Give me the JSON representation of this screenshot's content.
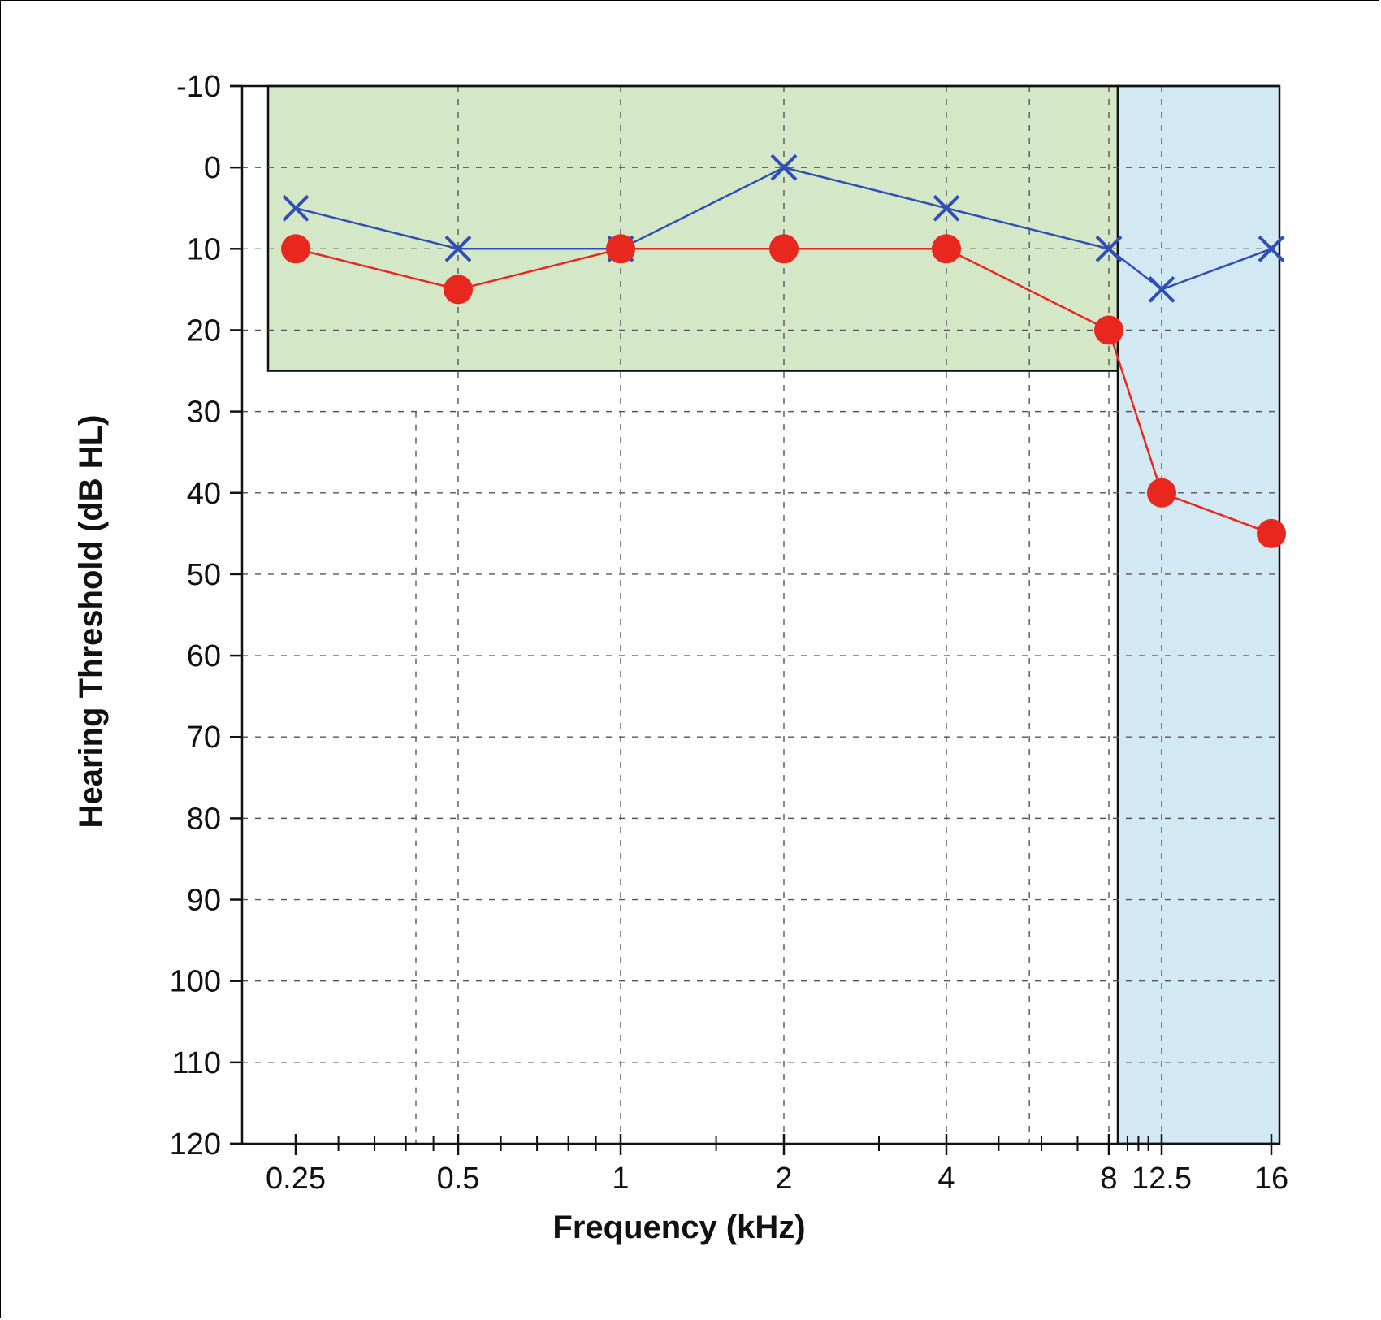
{
  "chart_data": {
    "type": "line",
    "title": "",
    "xlabel": "Frequency (kHz)",
    "ylabel": "Hearing Threshold (dB HL)",
    "x_scale": "log",
    "y_inverted": true,
    "ylim": [
      -10,
      120
    ],
    "y_ticks": [
      -10,
      0,
      10,
      20,
      30,
      40,
      50,
      60,
      70,
      80,
      90,
      100,
      110,
      120
    ],
    "x_ticks": [
      {
        "value": 0.25,
        "label": "0.25"
      },
      {
        "value": 0.5,
        "label": "0.5"
      },
      {
        "value": 1,
        "label": "1"
      },
      {
        "value": 2,
        "label": "2"
      },
      {
        "value": 4,
        "label": "4"
      },
      {
        "value": 8,
        "label": "8"
      },
      {
        "value": 12.5,
        "label": "12.5"
      },
      {
        "value": 16,
        "label": "16"
      }
    ],
    "grid": true,
    "shaded_regions": [
      {
        "x_from": 0.2,
        "x_to": 8.2,
        "y_from": -10,
        "y_to": 25,
        "color": "#d4e8c8"
      },
      {
        "x_from": 8.2,
        "x_to": 16.5,
        "y_from": -10,
        "y_to": 120,
        "color": "#d2e8f2"
      }
    ],
    "series": [
      {
        "marker": "x",
        "color": "#2f4fb5",
        "x": [
          0.25,
          0.5,
          1,
          2,
          4,
          8,
          12.5,
          16
        ],
        "values": [
          5,
          10,
          10,
          0,
          5,
          10,
          15,
          10
        ]
      },
      {
        "marker": "circle",
        "color": "#e8281e",
        "x": [
          0.25,
          0.5,
          1,
          2,
          4,
          8,
          12.5,
          16
        ],
        "values": [
          10,
          15,
          10,
          10,
          10,
          20,
          40,
          45
        ]
      }
    ]
  }
}
